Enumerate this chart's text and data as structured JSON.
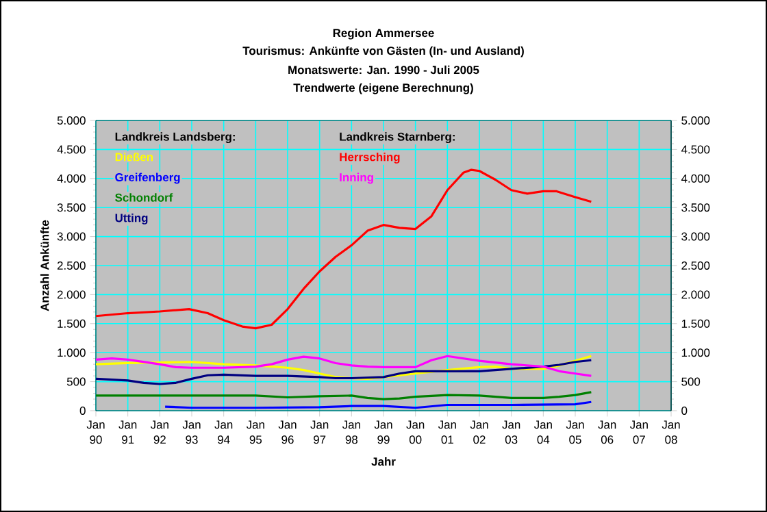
{
  "chart_data": {
    "type": "line",
    "title": "Region Ammersee",
    "subtitle": "Tourismus:  Ankünfte von Gästen (In- und Ausland)",
    "annotations": [
      "Monatswerte: Jan. 1990 - Juli 2005",
      "Trendwerte (eigene Berechnung)",
      "Landkreis Landsberg:",
      "Landkreis Starnberg:"
    ],
    "xlabel": "Jahr",
    "ylabel": "Anzahl Ankünfte",
    "grid": true,
    "legend": "top left",
    "line_style": "solid",
    "marker": "none",
    "xlim": [
      "1990-01",
      "2008-01"
    ],
    "xticks": [
      {
        "value": "1990-01",
        "label": "Jan 90"
      },
      {
        "value": "1991-01",
        "label": "Jan 91"
      },
      {
        "value": "1992-01",
        "label": "Jan 92"
      },
      {
        "value": "1993-01",
        "label": "Jan 93"
      },
      {
        "value": "1994-01",
        "label": "Jan 94"
      },
      {
        "value": "1995-01",
        "label": "Jan 95"
      },
      {
        "value": "1996-01",
        "label": "Jan 96"
      },
      {
        "value": "1997-01",
        "label": "Jan 97"
      },
      {
        "value": "1998-01",
        "label": "Jan 98"
      },
      {
        "value": "1999-01",
        "label": "Jan 99"
      },
      {
        "value": "2000-01",
        "label": "Jan 00"
      },
      {
        "value": "2001-01",
        "label": "Jan 01"
      },
      {
        "value": "2002-01",
        "label": "Jan 02"
      },
      {
        "value": "2003-01",
        "label": "Jan 03"
      },
      {
        "value": "2004-01",
        "label": "Jan 04"
      },
      {
        "value": "2005-01",
        "label": "Jan 05"
      },
      {
        "value": "2006-01",
        "label": "Jan 06"
      },
      {
        "value": "2007-01",
        "label": "Jan 07"
      },
      {
        "value": "2008-01",
        "label": "Jan 08"
      }
    ],
    "ylim": [
      0,
      5000
    ],
    "yticks": [
      0,
      500,
      {
        "value": 1000,
        "label": "1.000"
      },
      {
        "value": 1500,
        "label": "1.500"
      },
      {
        "value": 2000,
        "label": "2.000"
      },
      {
        "value": 2500,
        "label": "2.500"
      },
      {
        "value": 3000,
        "label": "3.000"
      },
      {
        "value": 3500,
        "label": "3.500"
      },
      {
        "value": 4000,
        "label": "4.000"
      },
      {
        "value": 4500,
        "label": "4.500"
      },
      {
        "value": 5000,
        "label": "5.000"
      }
    ],
    "y2lim": [
      0,
      5000
    ],
    "y2ticks": [
      0,
      500,
      {
        "value": 1000,
        "label": "1.000"
      },
      {
        "value": 1500,
        "label": "1.500"
      },
      {
        "value": 2000,
        "label": "2.000"
      },
      {
        "value": 2500,
        "label": "2.500"
      },
      {
        "value": 3000,
        "label": "3.000"
      },
      {
        "value": 3500,
        "label": "3.500"
      },
      {
        "value": 4000,
        "label": "4.000"
      },
      {
        "value": 4500,
        "label": "4.500"
      },
      {
        "value": 5000,
        "label": "5.000"
      }
    ],
    "series": [
      {
        "name": "Dießen",
        "color": "#ffff00",
        "x": [
          "1990-01",
          "1991-01",
          "1992-01",
          "1993-01",
          "1994-01",
          "1995-01",
          "1996-01",
          "1996-07",
          "1997-01",
          "1997-07",
          "1998-01",
          "1998-07",
          "1999-01",
          "2000-01",
          "2001-01",
          "2002-01",
          "2002-07",
          "2003-01",
          "2004-01",
          "2004-07",
          "2005-01",
          "2005-07"
        ],
        "values": [
          800,
          820,
          830,
          840,
          800,
          780,
          740,
          700,
          640,
          580,
          560,
          550,
          580,
          640,
          700,
          750,
          760,
          720,
          720,
          780,
          860,
          940
        ]
      },
      {
        "name": "Greifenberg",
        "color": "#0000ff",
        "x": [
          "1992-03",
          "1993-01",
          "1995-01",
          "1997-01",
          "1998-01",
          "1999-01",
          "2000-01",
          "2001-01",
          "2003-01",
          "2005-01",
          "2005-07"
        ],
        "values": [
          70,
          50,
          50,
          60,
          80,
          80,
          50,
          100,
          100,
          110,
          150
        ]
      },
      {
        "name": "Schondorf",
        "color": "#008000",
        "x": [
          "1990-01",
          "1995-01",
          "1996-01",
          "1997-01",
          "1998-01",
          "1998-07",
          "1999-01",
          "1999-07",
          "2000-01",
          "2001-01",
          "2002-01",
          "2003-01",
          "2004-01",
          "2004-07",
          "2005-01",
          "2005-07"
        ],
        "values": [
          260,
          260,
          230,
          250,
          260,
          220,
          200,
          210,
          240,
          270,
          260,
          220,
          220,
          240,
          270,
          320
        ]
      },
      {
        "name": "Utting",
        "color": "#000080",
        "x": [
          "1990-01",
          "1991-01",
          "1991-07",
          "1992-01",
          "1992-07",
          "1993-01",
          "1993-07",
          "1994-01",
          "1995-01",
          "1996-01",
          "1997-01",
          "1997-07",
          "1998-01",
          "1999-01",
          "1999-07",
          "2000-01",
          "2001-01",
          "2002-01",
          "2003-01",
          "2004-01",
          "2004-07",
          "2005-01",
          "2005-07"
        ],
        "values": [
          550,
          520,
          480,
          460,
          480,
          550,
          610,
          620,
          600,
          600,
          580,
          560,
          560,
          580,
          640,
          680,
          680,
          680,
          720,
          760,
          790,
          840,
          870
        ]
      },
      {
        "name": "Herrsching",
        "color": "#ff0000",
        "x": [
          "1990-01",
          "1991-01",
          "1992-01",
          "1992-12",
          "1993-07",
          "1994-01",
          "1994-08",
          "1995-01",
          "1995-07",
          "1996-01",
          "1996-07",
          "1997-01",
          "1997-07",
          "1998-01",
          "1998-07",
          "1999-01",
          "1999-07",
          "2000-01",
          "2000-07",
          "2001-01",
          "2001-07",
          "2001-10",
          "2002-01",
          "2002-07",
          "2003-01",
          "2003-07",
          "2004-01",
          "2004-06",
          "2005-01",
          "2005-07"
        ],
        "values": [
          1630,
          1680,
          1710,
          1750,
          1680,
          1560,
          1450,
          1420,
          1480,
          1750,
          2100,
          2400,
          2650,
          2850,
          3100,
          3200,
          3150,
          3130,
          3350,
          3800,
          4100,
          4150,
          4130,
          3980,
          3800,
          3740,
          3780,
          3780,
          3680,
          3600
        ]
      },
      {
        "name": "Inning",
        "color": "#ff00ff",
        "x": [
          "1990-01",
          "1990-07",
          "1991-01",
          "1992-01",
          "1992-07",
          "1993-01",
          "1994-01",
          "1995-01",
          "1995-07",
          "1996-01",
          "1996-07",
          "1997-01",
          "1997-07",
          "1998-01",
          "1998-07",
          "1999-01",
          "2000-01",
          "2000-07",
          "2001-01",
          "2001-07",
          "2002-01",
          "2003-01",
          "2004-01",
          "2004-07",
          "2005-01",
          "2005-07"
        ],
        "values": [
          880,
          900,
          880,
          800,
          750,
          740,
          740,
          760,
          800,
          880,
          930,
          900,
          820,
          780,
          760,
          750,
          750,
          870,
          940,
          900,
          860,
          800,
          760,
          680,
          640,
          600
        ]
      }
    ]
  }
}
